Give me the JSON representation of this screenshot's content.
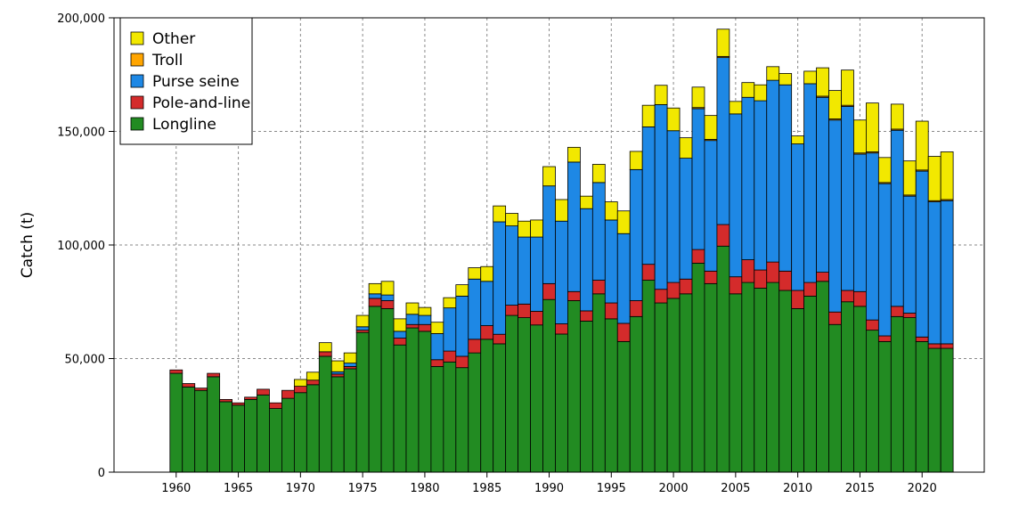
{
  "chart_data": {
    "type": "bar",
    "stacked": true,
    "title": "",
    "xlabel": "",
    "ylabel": "Catch (t)",
    "ylim": [
      0,
      200000
    ],
    "xlim": [
      1955,
      2025
    ],
    "grid": true,
    "legend_position": "top-left",
    "x_ticks": [
      1960,
      1965,
      1970,
      1975,
      1980,
      1985,
      1990,
      1995,
      2000,
      2005,
      2010,
      2015,
      2020
    ],
    "x_tick_labels": [
      "1960",
      "1965",
      "1970",
      "1975",
      "1980",
      "1985",
      "1990",
      "1995",
      "2000",
      "2005",
      "2010",
      "2015",
      "2020"
    ],
    "y_ticks": [
      0,
      50000,
      100000,
      150000,
      200000
    ],
    "y_tick_labels": [
      "0",
      "50,000",
      "100,000",
      "150,000",
      "200,000"
    ],
    "legend_entries": [
      "Other",
      "Troll",
      "Purse seine",
      "Pole-and-line",
      "Longline"
    ],
    "categories": [
      1960,
      1961,
      1962,
      1963,
      1964,
      1965,
      1966,
      1967,
      1968,
      1969,
      1970,
      1971,
      1972,
      1973,
      1974,
      1975,
      1976,
      1977,
      1978,
      1979,
      1980,
      1981,
      1982,
      1983,
      1984,
      1985,
      1986,
      1987,
      1988,
      1989,
      1990,
      1991,
      1992,
      1993,
      1994,
      1995,
      1996,
      1997,
      1998,
      1999,
      2000,
      2001,
      2002,
      2003,
      2004,
      2005,
      2006,
      2007,
      2008,
      2009,
      2010,
      2011,
      2012,
      2013,
      2014,
      2015,
      2016,
      2017,
      2018,
      2019,
      2020,
      2021,
      2022
    ],
    "series": [
      {
        "name": "Longline",
        "color": "#228b22",
        "values": [
          43500,
          37500,
          36000,
          42000,
          31000,
          29500,
          32000,
          34000,
          28000,
          32500,
          35000,
          38500,
          51000,
          42000,
          45500,
          61500,
          73000,
          72000,
          56000,
          63500,
          62000,
          46500,
          48500,
          46000,
          52500,
          58500,
          56500,
          69000,
          68000,
          64800,
          76000,
          60800,
          75500,
          66500,
          78500,
          67500,
          57500,
          68500,
          84500,
          74500,
          76500,
          78500,
          92000,
          83000,
          99500,
          78500,
          83500,
          81000,
          83500,
          80000,
          72000,
          77500,
          84000,
          65000,
          75000,
          73000,
          62500,
          57500,
          68500,
          68000,
          57500,
          54500,
          54500
        ]
      },
      {
        "name": "Pole-and-line",
        "color": "#d42b2b",
        "values": [
          1500,
          1500,
          1000,
          1500,
          1000,
          1000,
          1000,
          2500,
          2500,
          3500,
          2800,
          2000,
          2000,
          1200,
          1000,
          1000,
          3500,
          3500,
          3000,
          1500,
          3000,
          3000,
          4800,
          5000,
          6000,
          6000,
          4200,
          4500,
          6000,
          6000,
          7000,
          4500,
          4000,
          4500,
          6000,
          7000,
          8000,
          7000,
          7000,
          6000,
          7000,
          6500,
          6000,
          5500,
          9500,
          7500,
          10000,
          8000,
          9000,
          8500,
          8000,
          6000,
          4000,
          5500,
          5000,
          6500,
          4500,
          2500,
          4500,
          2000,
          2000,
          2000,
          2000
        ]
      },
      {
        "name": "Purse seine",
        "color": "#1e88e5",
        "values": [
          0,
          0,
          0,
          0,
          0,
          0,
          0,
          0,
          0,
          0,
          0,
          0,
          0,
          1000,
          1500,
          1500,
          2000,
          2500,
          3000,
          4500,
          4000,
          11500,
          19000,
          26500,
          26500,
          19500,
          49500,
          34900,
          29500,
          32700,
          43000,
          45200,
          57000,
          45000,
          43000,
          36500,
          39500,
          57700,
          60500,
          81300,
          66800,
          53200,
          62000,
          57500,
          73500,
          71700,
          71500,
          74500,
          80000,
          82000,
          64500,
          87500,
          77000,
          84500,
          81000,
          60500,
          73500,
          67000,
          77500,
          51500,
          73000,
          62500,
          63000
        ]
      },
      {
        "name": "Troll",
        "color": "#ffa500",
        "values": [
          0,
          0,
          0,
          0,
          0,
          0,
          0,
          0,
          0,
          0,
          0,
          0,
          0,
          0,
          0,
          0,
          0,
          0,
          0,
          0,
          0,
          0,
          0,
          0,
          0,
          0,
          0,
          0,
          0,
          0,
          0,
          0,
          0,
          0,
          0,
          0,
          0,
          0,
          0,
          0,
          0,
          0,
          500,
          500,
          500,
          0,
          0,
          0,
          0,
          0,
          0,
          0,
          500,
          500,
          500,
          500,
          500,
          500,
          500,
          500,
          500,
          500,
          500
        ]
      },
      {
        "name": "Other",
        "color": "#f2e800",
        "values": [
          0,
          0,
          0,
          0,
          0,
          0,
          0,
          0,
          0,
          0,
          3000,
          3500,
          4000,
          4800,
          4500,
          5000,
          4500,
          6000,
          5500,
          5000,
          3500,
          5000,
          4500,
          5000,
          5000,
          6500,
          7000,
          5500,
          7000,
          7500,
          8500,
          9500,
          6500,
          5500,
          8000,
          8000,
          10000,
          8000,
          9500,
          8500,
          10000,
          9000,
          9000,
          10500,
          12000,
          5500,
          6500,
          7000,
          6000,
          5000,
          3500,
          5500,
          12500,
          12500,
          15500,
          14500,
          21500,
          11000,
          11000,
          15000,
          21500,
          19500,
          21000
        ]
      }
    ]
  }
}
